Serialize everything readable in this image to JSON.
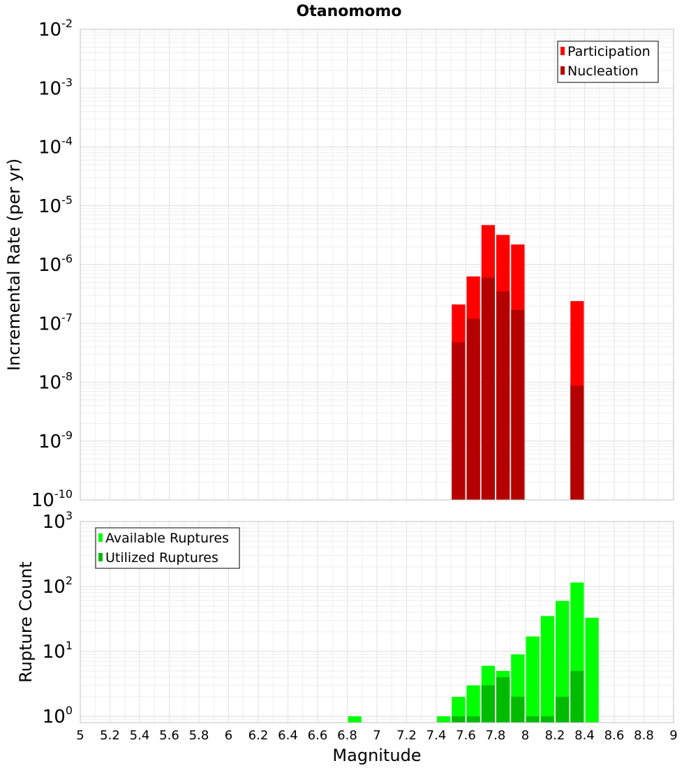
{
  "chart_data": {
    "title": "Otanomomo",
    "xlabel": "Magnitude",
    "xlim": [
      5,
      9
    ],
    "xticks": [
      "5",
      "5.2",
      "5.4",
      "5.6",
      "5.8",
      "6",
      "6.2",
      "6.4",
      "6.6",
      "6.8",
      "7",
      "7.2",
      "7.4",
      "7.6",
      "7.8",
      "8",
      "8.2",
      "8.4",
      "8.6",
      "8.8",
      "9"
    ],
    "grid": true,
    "panels": [
      {
        "type": "bar",
        "scale": "log",
        "ylabel": "Incremental Rate (per yr)",
        "ylim": [
          1e-10,
          0.01
        ],
        "ytick_exponents": [
          -10,
          -9,
          -8,
          -7,
          -6,
          -5,
          -4,
          -3,
          -2
        ],
        "legend_position": "top-right",
        "series": [
          {
            "name": "Participation",
            "color": "#ff0000",
            "x": [
              7.55,
              7.65,
              7.75,
              7.85,
              7.95,
              8.35
            ],
            "values": [
              2.1e-07,
              6.3e-07,
              4.7e-06,
              3.2e-06,
              2.2e-06,
              2.4e-07
            ]
          },
          {
            "name": "Nucleation",
            "color": "#b40000",
            "x": [
              7.55,
              7.65,
              7.75,
              7.85,
              7.95,
              8.35
            ],
            "values": [
              4.8e-08,
              1.2e-07,
              6e-07,
              3.5e-07,
              1.7e-07,
              8.8e-09
            ]
          }
        ]
      },
      {
        "type": "bar",
        "scale": "log",
        "ylabel": "Rupture Count",
        "ylim": [
          0.8,
          1000
        ],
        "ytick_exponents": [
          0,
          1,
          2,
          3
        ],
        "legend_position": "top-left",
        "series": [
          {
            "name": "Available Ruptures",
            "color": "#00ff00",
            "x": [
              6.85,
              7.45,
              7.55,
              7.65,
              7.75,
              7.85,
              7.95,
              8.05,
              8.15,
              8.25,
              8.35,
              8.45
            ],
            "values": [
              1,
              1,
              2,
              3,
              6,
              5,
              9,
              17,
              35,
              60,
              115,
              33
            ]
          },
          {
            "name": "Utilized Ruptures",
            "color": "#00bb00",
            "x": [
              7.55,
              7.65,
              7.75,
              7.85,
              7.95,
              8.05,
              8.15,
              8.25,
              8.35
            ],
            "values": [
              1,
              1,
              3,
              4,
              2,
              1,
              1,
              2,
              5
            ]
          }
        ]
      }
    ]
  }
}
